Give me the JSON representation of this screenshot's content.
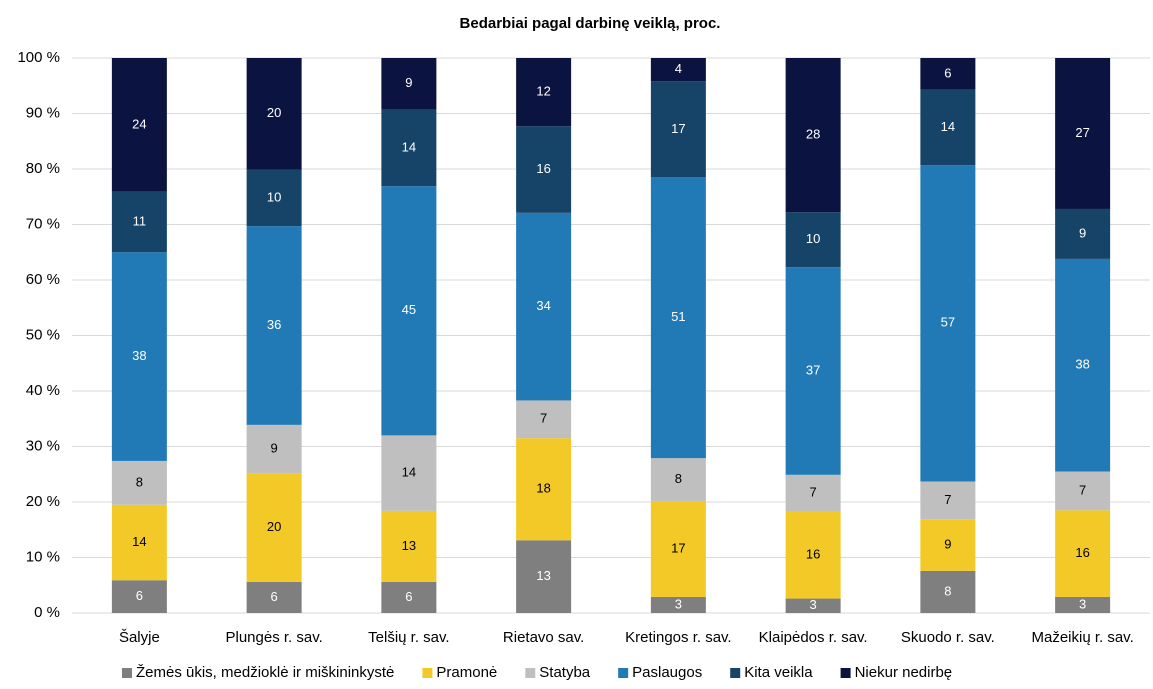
{
  "chart_data": {
    "type": "stacked_bar_percent",
    "title": "Bedarbiai pagal darbinę veiklą, proc.",
    "categories": [
      "Šalyje",
      "Plungės r. sav.",
      "Telšių r. sav.",
      "Rietavo sav.",
      "Kretingos r. sav.",
      "Klaipėdos r. sav.",
      "Skuodo r. sav.",
      "Mažeikių r. sav."
    ],
    "series": [
      {
        "name": "Žemės ūkis, medžioklė ir miškininkystė",
        "color": "#7f7f7f",
        "values": [
          5.9,
          5.6,
          5.6,
          13.1,
          2.9,
          2.6,
          7.6,
          2.9
        ],
        "value_labels": [
          "6",
          "6",
          "6",
          "13",
          "3",
          "3",
          "8",
          "3"
        ]
      },
      {
        "name": "Pramonė",
        "color": "#f2c927",
        "values": [
          13.6,
          19.6,
          12.8,
          18.4,
          17.3,
          15.7,
          9.3,
          15.6
        ],
        "value_labels": [
          "14",
          "20",
          "13",
          "18",
          "17",
          "16",
          "9",
          "16"
        ]
      },
      {
        "name": "Statyba",
        "color": "#bfbfbf",
        "values": [
          7.9,
          8.7,
          13.6,
          6.8,
          7.7,
          6.6,
          6.8,
          7.0
        ],
        "value_labels": [
          "8",
          "9",
          "14",
          "7",
          "8",
          "7",
          "7",
          "7"
        ]
      },
      {
        "name": "Paslaugos",
        "color": "#217ab5",
        "values": [
          37.6,
          35.8,
          44.9,
          33.8,
          50.6,
          37.4,
          57.0,
          38.3
        ],
        "value_labels": [
          "38",
          "36",
          "45",
          "34",
          "51",
          "37",
          "57",
          "38"
        ]
      },
      {
        "name": "Kita veikla",
        "color": "#164468",
        "values": [
          10.9,
          10.2,
          13.8,
          15.6,
          17.3,
          9.9,
          13.6,
          9.0
        ],
        "value_labels": [
          "11",
          "10",
          "14",
          "16",
          "17",
          "10",
          "14",
          "9"
        ]
      },
      {
        "name": "Niekur nedirbę",
        "color": "#0b1341",
        "values": [
          24.1,
          20.1,
          9.3,
          12.3,
          4.2,
          27.8,
          5.7,
          27.2
        ],
        "value_labels": [
          "24",
          "20",
          "9",
          "12",
          "4",
          "28",
          "6",
          "27"
        ]
      }
    ],
    "ylim": [
      0,
      100
    ],
    "yticks": [
      {
        "value": 0,
        "label": "0 %"
      },
      {
        "value": 10,
        "label": "10 %"
      },
      {
        "value": 20,
        "label": "20 %"
      },
      {
        "value": 30,
        "label": "30 %"
      },
      {
        "value": 40,
        "label": "40 %"
      },
      {
        "value": 50,
        "label": "50 %"
      },
      {
        "value": 60,
        "label": "60 %"
      },
      {
        "value": 70,
        "label": "70 %"
      },
      {
        "value": 80,
        "label": "80 %"
      },
      {
        "value": 90,
        "label": "90 %"
      },
      {
        "value": 100,
        "label": "100 %"
      }
    ],
    "grid": true,
    "legend": "bottom"
  }
}
